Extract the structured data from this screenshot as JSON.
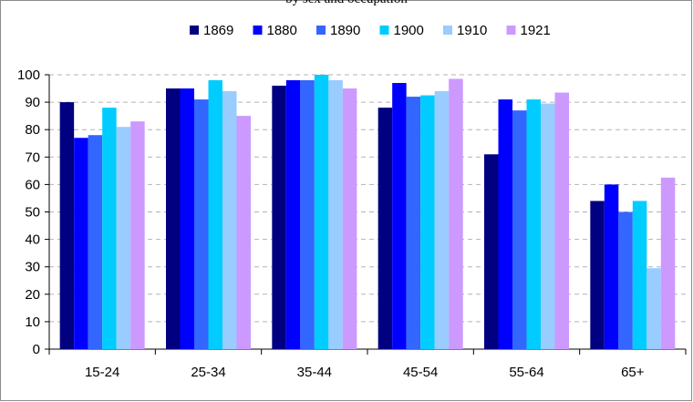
{
  "header_text": "by sex and occupation",
  "chart_data": {
    "type": "bar",
    "title": "",
    "xlabel": "",
    "ylabel": "",
    "categories": [
      "15-24",
      "25-34",
      "35-44",
      "45-54",
      "55-64",
      "65+"
    ],
    "series": [
      {
        "name": "1869",
        "color": "#000080",
        "values": [
          90,
          95,
          96,
          88,
          71,
          54
        ]
      },
      {
        "name": "1880",
        "color": "#0000ff",
        "values": [
          77,
          95,
          98,
          97,
          91,
          60
        ]
      },
      {
        "name": "1890",
        "color": "#3366ff",
        "values": [
          78,
          91,
          98,
          92,
          87,
          50
        ]
      },
      {
        "name": "1900",
        "color": "#00ccff",
        "values": [
          88,
          98,
          100,
          92.5,
          91,
          54
        ]
      },
      {
        "name": "1910",
        "color": "#99ccff",
        "values": [
          81,
          94,
          98,
          94,
          89.5,
          29.5
        ]
      },
      {
        "name": "1921",
        "color": "#cc99ff",
        "values": [
          83,
          85,
          95,
          98.5,
          93.5,
          62.5
        ]
      }
    ],
    "ylim": [
      0,
      100
    ],
    "yticks": [
      0,
      10,
      20,
      30,
      40,
      50,
      60,
      70,
      80,
      90,
      100
    ],
    "grid": true,
    "legend_position": "top"
  }
}
